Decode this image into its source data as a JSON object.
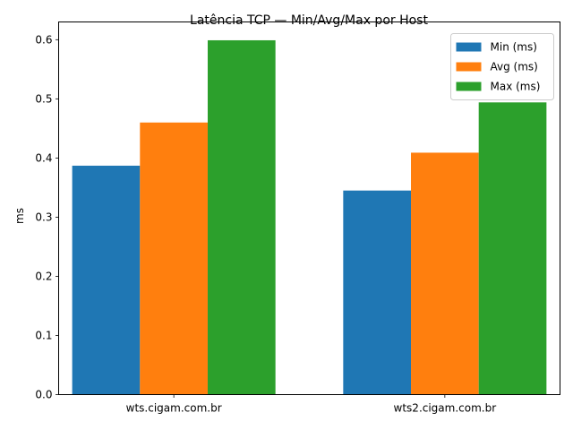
{
  "chart_data": {
    "type": "bar",
    "title": "Latência TCP — Min/Avg/Max por Host",
    "xlabel": "",
    "ylabel": "ms",
    "categories": [
      "wts.cigam.com.br",
      "wts2.cigam.com.br"
    ],
    "series": [
      {
        "name": "Min (ms)",
        "values": [
          0.387,
          0.345
        ],
        "color": "#1f77b4"
      },
      {
        "name": "Avg (ms)",
        "values": [
          0.46,
          0.409
        ],
        "color": "#ff7f0e"
      },
      {
        "name": "Max (ms)",
        "values": [
          0.599,
          0.494
        ],
        "color": "#2ca02c"
      }
    ],
    "ylim": [
      0,
      0.63
    ],
    "yticks": [
      "0.0",
      "0.1",
      "0.2",
      "0.3",
      "0.4",
      "0.5",
      "0.6"
    ],
    "grid": false,
    "legend_position": "top-right"
  }
}
